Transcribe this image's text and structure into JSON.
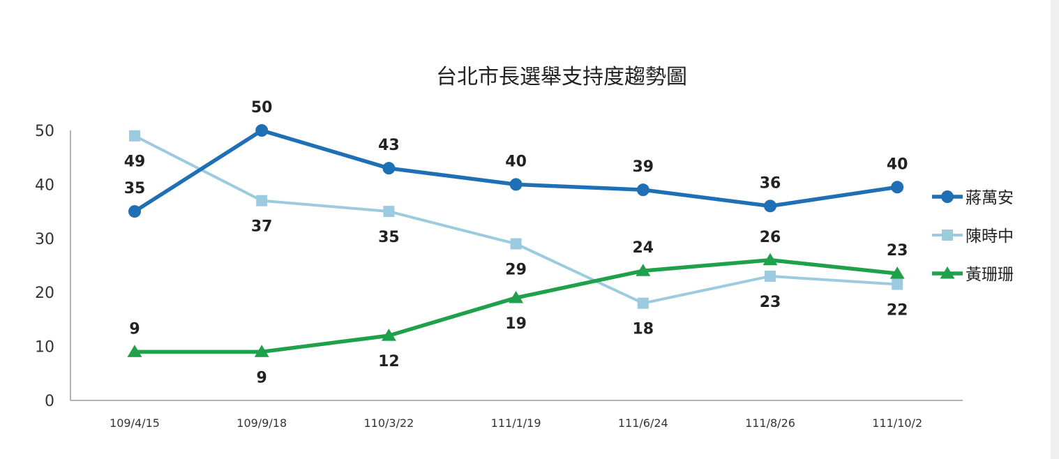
{
  "chart_data": {
    "type": "line",
    "title": "台北市長選舉支持度趨勢圖",
    "xlabel": "",
    "ylabel": "",
    "categories": [
      "109/4/15",
      "109/9/18",
      "110/3/22",
      "111/1/19",
      "111/6/24",
      "111/8/26",
      "111/10/2"
    ],
    "ylim": [
      0,
      50
    ],
    "yticks": [
      0,
      10,
      20,
      30,
      40,
      50
    ],
    "grid": false,
    "legend_position": "right",
    "series": [
      {
        "name": "蔣萬安",
        "color": "#1f6fb5",
        "marker": "circle",
        "values": [
          35,
          50,
          43,
          40,
          39,
          36,
          40
        ],
        "value_labels": [
          "35",
          "50",
          "43",
          "40",
          "39",
          "36",
          "40"
        ],
        "plot_values": [
          35,
          50,
          43,
          40,
          39,
          36,
          39.5
        ],
        "label_pos": [
          "above",
          "above",
          "above",
          "above",
          "above",
          "above",
          "above"
        ]
      },
      {
        "name": "陳時中",
        "color": "#9ccbe0",
        "marker": "square",
        "values": [
          49,
          37,
          35,
          29,
          18,
          23,
          22
        ],
        "value_labels": [
          "49",
          "37",
          "35",
          "29",
          "18",
          "23",
          "22"
        ],
        "plot_values": [
          49,
          37,
          35,
          29,
          18,
          23,
          21.5
        ],
        "label_pos": [
          "below",
          "below",
          "below",
          "below",
          "below",
          "below",
          "below"
        ]
      },
      {
        "name": "黃珊珊",
        "color": "#1fa04a",
        "marker": "triangle",
        "values": [
          9,
          9,
          12,
          19,
          24,
          26,
          23
        ],
        "value_labels": [
          "9",
          "9",
          "12",
          "19",
          "24",
          "26",
          "23"
        ],
        "plot_values": [
          9,
          9,
          12,
          19,
          24,
          26,
          23.5
        ],
        "label_pos": [
          "above",
          "below",
          "below",
          "below",
          "above",
          "above",
          "above"
        ]
      }
    ]
  }
}
